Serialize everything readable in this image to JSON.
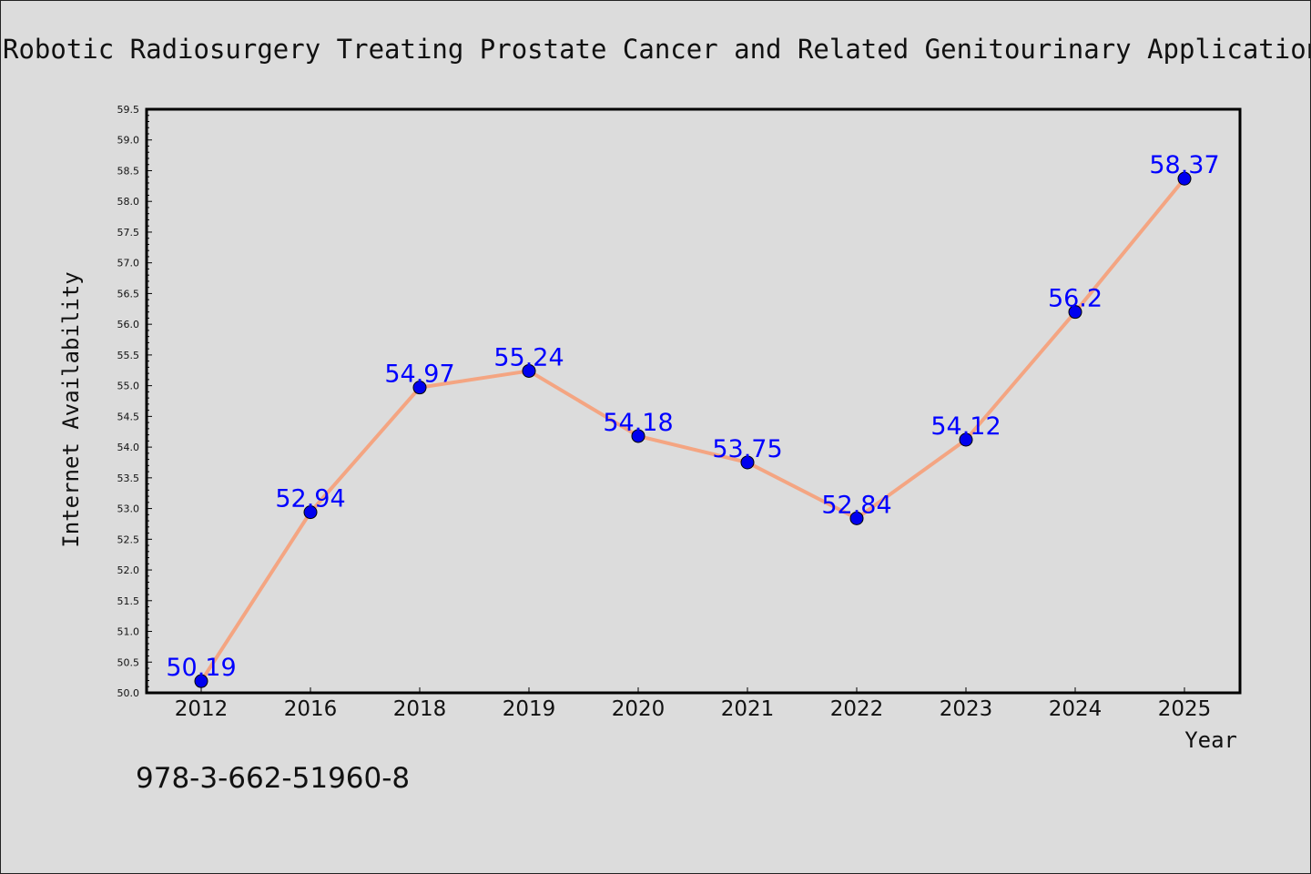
{
  "chart_data": {
    "type": "line",
    "title": "Robotic Radiosurgery Treating Prostate Cancer and Related Genitourinary Applications",
    "xlabel": "Year",
    "ylabel": "Internet Availability",
    "categories": [
      "2012",
      "2016",
      "2018",
      "2019",
      "2020",
      "2021",
      "2022",
      "2023",
      "2024",
      "2025"
    ],
    "series": [
      {
        "values": [
          50.19,
          52.94,
          54.97,
          55.24,
          54.18,
          53.75,
          52.84,
          54.12,
          56.2,
          58.37
        ],
        "labels": [
          "50.19",
          "52.94",
          "54.97",
          "55.24",
          "54.18",
          "53.75",
          "52.84",
          "54.12",
          "56.2",
          "58.37"
        ],
        "line_color": "#f4a582",
        "marker_color": "#0000ee",
        "label_color": "#0000ff"
      }
    ],
    "ylim": [
      50.0,
      59.5
    ],
    "ytick_step": 0.5,
    "grid": false,
    "legend": "none"
  },
  "annotation": "978-3-662-51960-8",
  "colors": {
    "background": "#dcdcdc",
    "plot_background": "#dcdcdc",
    "axis": "#000000",
    "text": "#111111"
  }
}
